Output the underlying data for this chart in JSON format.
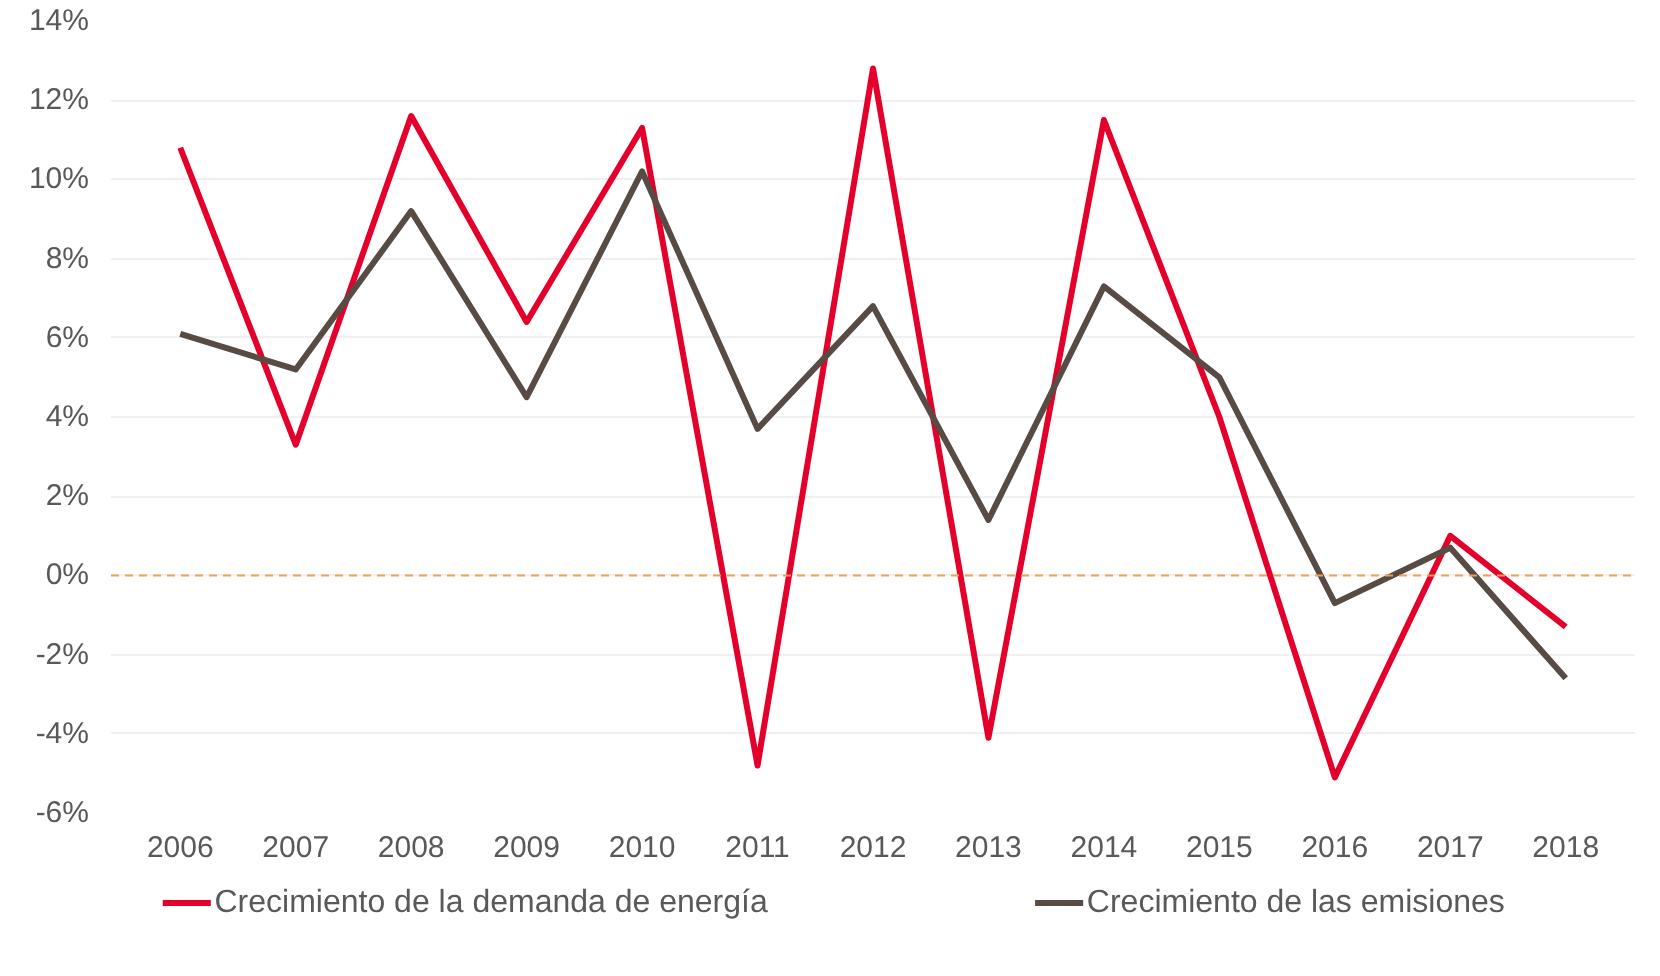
{
  "chart_data": {
    "type": "line",
    "categories": [
      "2006",
      "2007",
      "2008",
      "2009",
      "2010",
      "2011",
      "2012",
      "2013",
      "2014",
      "2015",
      "2016",
      "2017",
      "2018"
    ],
    "series": [
      {
        "name": "Crecimiento de la demanda de energía",
        "color": "#e4002b",
        "values": [
          10.8,
          3.3,
          11.6,
          6.4,
          11.3,
          -4.8,
          12.8,
          -4.1,
          11.5,
          4.0,
          -5.1,
          1.0,
          -1.3
        ]
      },
      {
        "name": "Crecimiento de las emisiones",
        "color": "#574b44",
        "values": [
          6.1,
          5.2,
          9.2,
          4.5,
          10.2,
          3.7,
          6.8,
          1.4,
          7.3,
          5.0,
          -0.7,
          0.7,
          -2.6
        ]
      }
    ],
    "ylim": [
      -6,
      14
    ],
    "yticks": [
      {
        "value": -6,
        "label": "-6%"
      },
      {
        "value": -4,
        "label": "-4%"
      },
      {
        "value": -2,
        "label": "-2%"
      },
      {
        "value": 0,
        "label": "0%"
      },
      {
        "value": 2,
        "label": "2%"
      },
      {
        "value": 4,
        "label": "4%"
      },
      {
        "value": 6,
        "label": "6%"
      },
      {
        "value": 8,
        "label": "8%"
      },
      {
        "value": 10,
        "label": "10%"
      },
      {
        "value": 12,
        "label": "12%"
      },
      {
        "value": 14,
        "label": "14%"
      }
    ],
    "ref_lines": [
      {
        "axis": "y",
        "value": 0,
        "label": null,
        "color": "#f0a050",
        "line_style": "dashed"
      }
    ],
    "grid": "y",
    "legend": "bottom",
    "marker": "none",
    "line_style": "solid"
  }
}
